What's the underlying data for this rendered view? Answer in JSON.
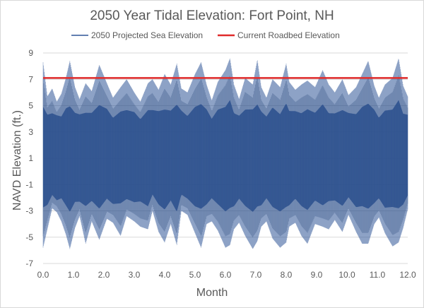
{
  "chart_data": {
    "type": "line",
    "title": "2050 Year Tidal Elevation: Fort Point, NH",
    "xlabel": "Month",
    "ylabel": "NAVD Elevation (ft.)",
    "xlim": [
      0,
      12
    ],
    "ylim": [
      -7,
      9
    ],
    "x_ticks": [
      "0.0",
      "1.0",
      "2.0",
      "3.0",
      "4.0",
      "5.0",
      "6.0",
      "7.0",
      "8.0",
      "9.0",
      "10.0",
      "11.0",
      "12.0"
    ],
    "y_ticks": [
      "9",
      "7",
      "5",
      "3",
      "1",
      "-1",
      "-3",
      "-5",
      "-7"
    ],
    "grid": "horizontal",
    "legend_position": "top",
    "series": [
      {
        "name": "2050 Projected Sea Elevation",
        "color": "#2f5597",
        "style": "dense oscillating tide line",
        "envelope": {
          "x": [
            0.0,
            0.14,
            0.3,
            0.45,
            0.6,
            0.75,
            0.88,
            1.05,
            1.2,
            1.4,
            1.6,
            1.85,
            2.1,
            2.3,
            2.55,
            2.75,
            3.0,
            3.2,
            3.45,
            3.6,
            3.8,
            4.0,
            4.2,
            4.4,
            4.55,
            4.75,
            5.0,
            5.2,
            5.38,
            5.55,
            5.75,
            6.0,
            6.15,
            6.28,
            6.45,
            6.65,
            6.9,
            7.05,
            7.18,
            7.35,
            7.55,
            7.8,
            8.0,
            8.1,
            8.3,
            8.5,
            8.7,
            8.95,
            9.2,
            9.4,
            9.6,
            9.85,
            10.05,
            10.3,
            10.5,
            10.7,
            10.9,
            11.05,
            11.25,
            11.5,
            11.7,
            11.85,
            12.0
          ],
          "max": [
            8.3,
            5.7,
            6.3,
            5.3,
            5.9,
            7.1,
            8.4,
            6.4,
            5.5,
            6.7,
            6.1,
            8.1,
            6.7,
            5.6,
            6.4,
            7.0,
            6.0,
            5.3,
            6.7,
            7.0,
            6.2,
            7.4,
            6.6,
            8.2,
            6.3,
            6.0,
            7.4,
            8.3,
            6.6,
            5.4,
            6.8,
            7.7,
            8.6,
            6.6,
            5.5,
            7.1,
            6.6,
            8.5,
            6.4,
            5.6,
            7.0,
            6.4,
            8.2,
            6.8,
            6.2,
            6.6,
            6.9,
            6.4,
            7.7,
            6.6,
            6.0,
            7.0,
            5.8,
            6.4,
            7.4,
            8.4,
            6.5,
            5.6,
            6.6,
            7.1,
            8.6,
            6.5,
            5.7
          ],
          "min": [
            -5.8,
            -4.4,
            -2.8,
            -3.1,
            -3.8,
            -4.8,
            -5.9,
            -4.3,
            -3.4,
            -5.5,
            -3.8,
            -5.2,
            -3.6,
            -3.9,
            -4.9,
            -3.4,
            -3.8,
            -4.2,
            -4.4,
            -3.0,
            -4.6,
            -5.4,
            -4.0,
            -5.6,
            -3.0,
            -3.3,
            -4.7,
            -5.8,
            -4.0,
            -3.8,
            -4.5,
            -5.8,
            -5.6,
            -4.4,
            -3.9,
            -4.9,
            -5.9,
            -5.3,
            -4.2,
            -3.8,
            -5.1,
            -5.8,
            -5.4,
            -4.2,
            -3.9,
            -4.9,
            -5.5,
            -4.0,
            -4.2,
            -4.4,
            -3.7,
            -4.6,
            -3.3,
            -4.6,
            -5.5,
            -5.5,
            -4.0,
            -3.5,
            -4.7,
            -5.7,
            -5.4,
            -4.3,
            -2.9
          ],
          "core_max": [
            3.2,
            3.5,
            3.4,
            3.6,
            3.3,
            3.5,
            3.2,
            3.4,
            3.6,
            3.3,
            3.5,
            3.4,
            3.6,
            3.3,
            3.5,
            3.4,
            3.6,
            3.3,
            3.5,
            3.4,
            3.6,
            3.3,
            3.5,
            3.4,
            3.6,
            3.3,
            3.5,
            3.4,
            3.6,
            3.3,
            3.5,
            3.4,
            3.6,
            3.3,
            3.5,
            3.4,
            3.6,
            3.3,
            3.5,
            3.4,
            3.6,
            3.3,
            3.5,
            3.4,
            3.6,
            3.3,
            3.5,
            3.4,
            3.6,
            3.3,
            3.5,
            3.4,
            3.6,
            3.3,
            3.5,
            3.4,
            3.6,
            3.3,
            3.5,
            3.4,
            3.6,
            3.3,
            3.5
          ],
          "core_min": [
            -1.2,
            -1.5,
            -1.3,
            -1.6,
            -1.2,
            -1.4,
            -1.5,
            -1.3,
            -1.6,
            -1.2,
            -1.4,
            -1.5,
            -1.3,
            -1.6,
            -1.2,
            -1.4,
            -1.5,
            -1.3,
            -1.6,
            -1.2,
            -1.4,
            -1.5,
            -1.3,
            -1.6,
            -1.2,
            -1.4,
            -1.5,
            -1.3,
            -1.6,
            -1.2,
            -1.4,
            -1.5,
            -1.3,
            -1.6,
            -1.2,
            -1.4,
            -1.5,
            -1.3,
            -1.6,
            -1.2,
            -1.4,
            -1.5,
            -1.3,
            -1.6,
            -1.2,
            -1.4,
            -1.5,
            -1.3,
            -1.6,
            -1.2,
            -1.4,
            -1.5,
            -1.3,
            -1.6,
            -1.2,
            -1.4,
            -1.5,
            -1.3,
            -1.6,
            -1.2,
            -1.4,
            -1.5,
            -1.3
          ]
        }
      },
      {
        "name": "Current Roadbed Elevation",
        "color": "#e02b2b",
        "style": "horizontal line",
        "x": [
          0,
          12
        ],
        "y": [
          7.1,
          7.1
        ]
      }
    ]
  }
}
